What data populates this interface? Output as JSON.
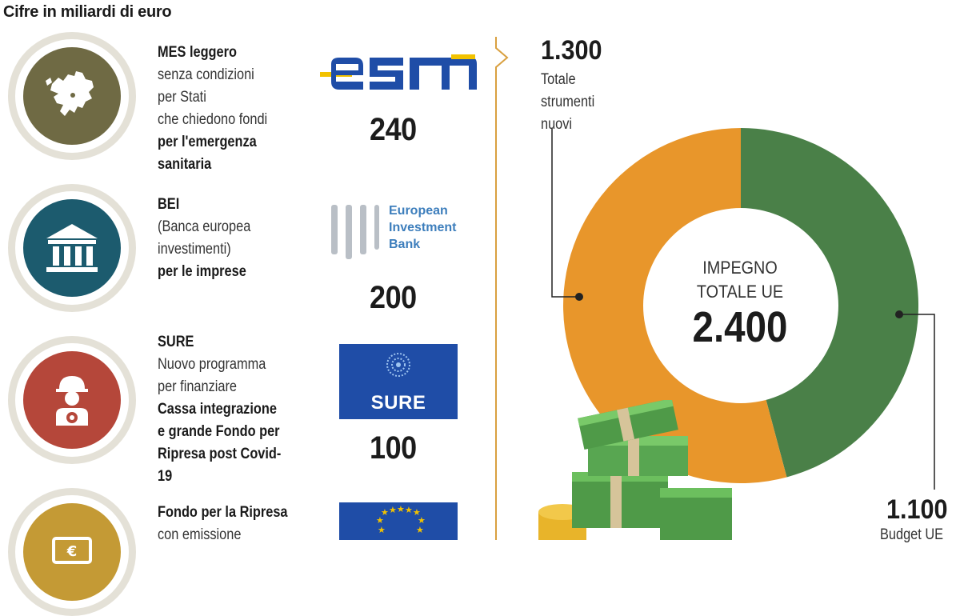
{
  "header": {
    "subtitle": "Cifre in miliardi di euro"
  },
  "items": [
    {
      "title": "MES leggero",
      "lines": [
        {
          "t": "senza condizioni",
          "b": false
        },
        {
          "t": "per Stati",
          "b": false
        },
        {
          "t": "che chiedono fondi",
          "b": false
        },
        {
          "t": "per l'emergenza",
          "b": true
        },
        {
          "t": "sanitaria",
          "b": true
        }
      ],
      "amount": "240",
      "logo": "esm",
      "icon": "europe-map-icon",
      "color": "#6f6a44"
    },
    {
      "title": "BEI",
      "lines": [
        {
          "t": "(Banca europea",
          "b": false
        },
        {
          "t": "investimenti)",
          "b": false
        },
        {
          "t": "per le imprese",
          "b": true
        }
      ],
      "amount": "200",
      "logo": "European Investment Bank",
      "icon": "bank-building-icon",
      "color": "#1c5b6e"
    },
    {
      "title": "SURE",
      "lines": [
        {
          "t": "Nuovo programma",
          "b": false
        },
        {
          "t": "per finanziare",
          "b": false
        },
        {
          "t": "Cassa integrazione",
          "b": true
        },
        {
          "t": "e grande Fondo per",
          "b": true
        },
        {
          "t": "Ripresa post Covid-19",
          "b": true
        }
      ],
      "amount": "100",
      "logo": "SURE",
      "icon": "worker-helmet-icon",
      "color": "#b5473a"
    },
    {
      "title": "Fondo per la Ripresa",
      "lines": [
        {
          "t": "con emissione",
          "b": false
        }
      ],
      "amount": "",
      "logo": "eu-flag",
      "icon": "money-icon",
      "color": "#c49a35"
    }
  ],
  "eib_logo_lines": [
    "European",
    "Investment",
    "Bank"
  ],
  "sure_logo_label": "SURE",
  "chart_data": {
    "type": "pie",
    "donut": true,
    "center_label": "IMPEGNO TOTALE UE",
    "center_value": "2.400",
    "slices": [
      {
        "name": "Totale strumenti nuovi",
        "value": 1300,
        "label": "1.300",
        "color": "#e8962b"
      },
      {
        "name": "Budget UE",
        "value": 1100,
        "label": "1.100",
        "color": "#4a8048"
      }
    ]
  },
  "callouts": {
    "a_value": "1.300",
    "a_label_lines": [
      "Totale",
      "strumenti",
      "nuovi"
    ],
    "b_value": "1.100",
    "b_label": "Budget UE"
  },
  "center": {
    "line1": "IMPEGNO",
    "line2": "TOTALE UE",
    "value": "2.400"
  }
}
